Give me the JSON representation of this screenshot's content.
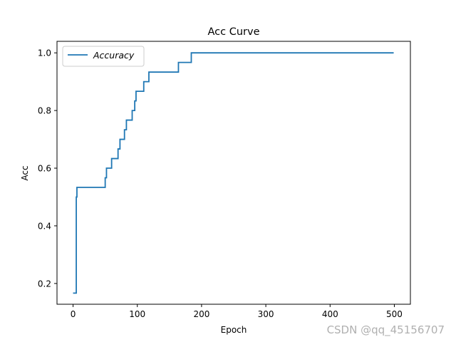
{
  "chart_data": {
    "type": "line",
    "title": "Acc Curve",
    "xlabel": "Epoch",
    "ylabel": "Acc",
    "xlim": [
      -25,
      525
    ],
    "ylim": [
      0.128,
      1.04
    ],
    "xticks": [
      0,
      100,
      200,
      300,
      400,
      500
    ],
    "yticks": [
      0.2,
      0.4,
      0.6,
      0.8,
      1.0
    ],
    "xtick_labels": [
      "0",
      "100",
      "200",
      "300",
      "400",
      "500"
    ],
    "ytick_labels": [
      "0.2",
      "0.4",
      "0.6",
      "0.8",
      "1.0"
    ],
    "grid": false,
    "legend": "upper left",
    "series": [
      {
        "name": "Accuracy",
        "color": "#1f77b4",
        "step": true,
        "x": [
          0,
          4,
          5,
          6,
          48,
          50,
          52,
          60,
          68,
          70,
          73,
          78,
          80,
          83,
          90,
          92,
          96,
          98,
          102,
          105,
          110,
          115,
          118,
          127,
          164,
          180,
          184,
          499
        ],
        "y": [
          0.1667,
          0.1667,
          0.5,
          0.5333,
          0.5333,
          0.5667,
          0.6,
          0.6333,
          0.6333,
          0.6667,
          0.7,
          0.7,
          0.7333,
          0.7667,
          0.7667,
          0.8,
          0.8333,
          0.8667,
          0.8667,
          0.8667,
          0.9,
          0.9,
          0.9333,
          0.9333,
          0.9667,
          0.9667,
          1.0,
          1.0
        ]
      }
    ]
  },
  "watermark": "CSDN @qq_45156707"
}
